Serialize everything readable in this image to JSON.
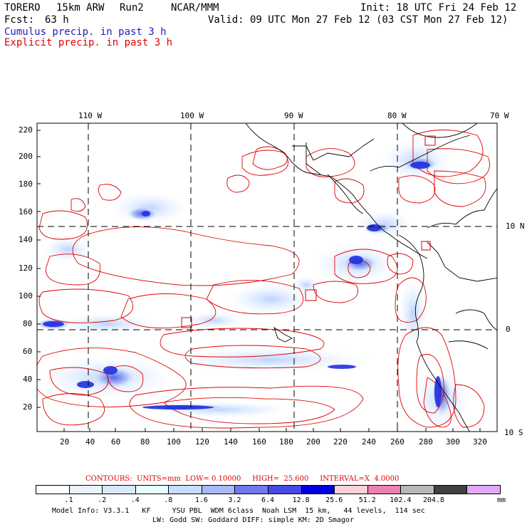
{
  "header": {
    "model": "TORERO",
    "resolution": "15km ARW",
    "run": "Run2",
    "org": "NCAR/MMM",
    "fcst_label": "Fcst:",
    "fcst_hours": "63 h",
    "init": "Init: 18 UTC Fri 24 Feb 12",
    "valid": "Valid: 09 UTC Mon 27 Feb 12 (03 CST Mon 27 Feb 12)",
    "legend_cumulus": "Cumulus precip. in past 3 h",
    "legend_explicit": "Explicit precip. in past 3 h"
  },
  "map": {
    "top_lon_labels": [
      "110 W",
      "100 W",
      "90 W",
      "80 W",
      "70 W"
    ],
    "left_y_labels": [
      "220",
      "200",
      "180",
      "160",
      "140",
      "120",
      "100",
      "80",
      "60",
      "40",
      "20"
    ],
    "bottom_x_labels": [
      "20",
      "40",
      "60",
      "80",
      "100",
      "120",
      "140",
      "160",
      "180",
      "200",
      "220",
      "240",
      "260",
      "280",
      "300",
      "320"
    ],
    "right_lat_labels": [
      "10 N",
      "0",
      "10 S"
    ],
    "colors": {
      "contour": "#e00000",
      "coast": "#000000",
      "grid": "#000000"
    }
  },
  "footer": {
    "contours_line": "CONTOURS:  UNITS=mm  LOW= 0.10000     HIGH=  25.600     INTERVAL=X  4.0000",
    "colorbar_labels": [
      ".1",
      ".2",
      ".4",
      ".8",
      "1.6",
      "3.2",
      "6.4",
      "12.8",
      "25.6",
      "51.2",
      "102.4",
      "204.8"
    ],
    "colorbar_unit": "mm",
    "colorbar_colors": [
      "#ffffff",
      "#eaf2ff",
      "#d8e8ff",
      "#e8ffff",
      "#c8dcff",
      "#a8b8f8",
      "#7078f0",
      "#4848e8",
      "#0000e0",
      "#ffd0d8",
      "#f080b0",
      "#b8b8b8",
      "#404040",
      "#e0a8f8"
    ],
    "model_info_1": "Model Info: V3.3.1   KF     YSU PBL  WDM 6class  Noah LSM  15 km,   44 levels,  114 sec",
    "model_info_2": "LW: Godd SW: Goddard DIFF: simple KM: 2D Smagor"
  }
}
